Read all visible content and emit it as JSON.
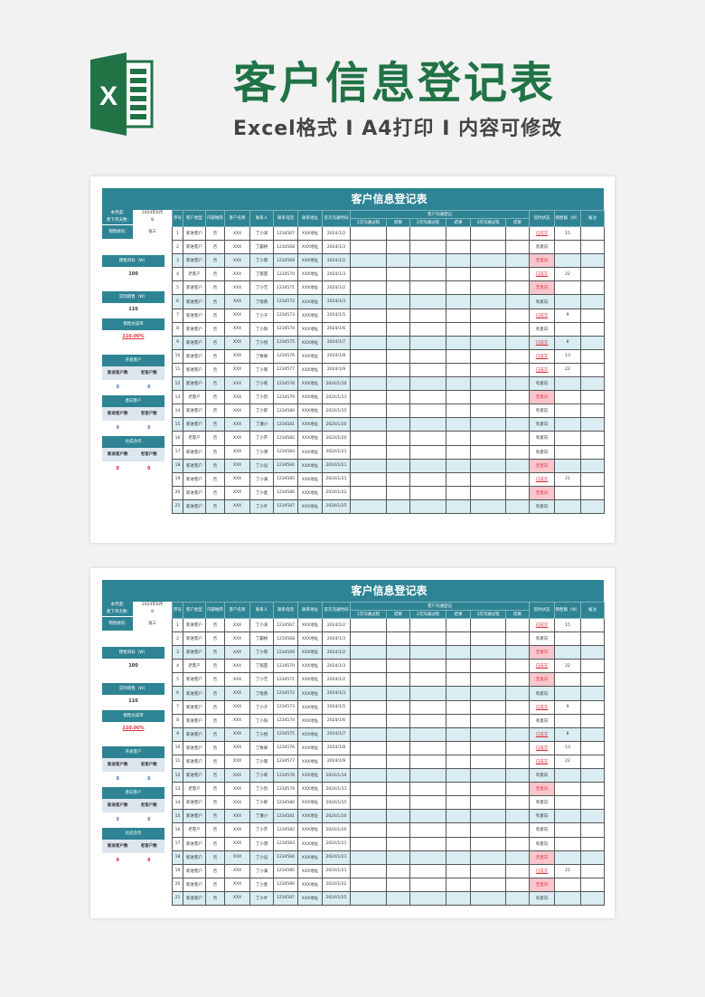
{
  "banner": {
    "title": "客户信息登记表",
    "subtitle": "Excel格式 I A4打印 I 内容可修改",
    "logo_letter": "X",
    "brand_color": "#217346"
  },
  "sheet": {
    "title": "客户信息登记表",
    "accent_color": "#2e8494",
    "info": {
      "month_label": "本月度:",
      "month_value": "2024年6月",
      "days_label": "距下月天数:",
      "days_value": "8",
      "advisor_label": "销售顾问:",
      "advisor_value": "张三"
    },
    "summary": {
      "target_label": "销售目标（W）",
      "target_value": "100",
      "actual_label": "实际销售（W）",
      "actual_value": "110",
      "rate_label": "销售达成率",
      "rate_value": "110.00%",
      "groups": [
        {
          "title": "开发客户",
          "new_label": "新进客户数",
          "old_label": "老客户数",
          "new_value": "8",
          "old_value": "8",
          "color": "#4a7fd0"
        },
        {
          "title": "意向客户",
          "new_label": "新进客户数",
          "old_label": "老客户数",
          "new_value": "8",
          "old_value": "8",
          "color": "#8a6cc0"
        },
        {
          "title": "达成合作",
          "new_label": "新进客户数",
          "old_label": "老客户数",
          "new_value": "8",
          "old_value": "8",
          "color": "#e0303a"
        }
      ]
    },
    "columns": [
      "序号",
      "客户类型",
      "内部推荐",
      "客户名称",
      "联系人",
      "联系电话",
      "联系地址",
      "首次沟通时间",
      "1次沟通过程",
      "结果",
      "2次沟通过程",
      "结果",
      "3次沟通过程",
      "结果",
      "签约状态",
      "销售额（W）",
      "备注"
    ],
    "group_header": "客户沟通登记",
    "rows": [
      [
        "1",
        "新进客户",
        "否",
        "XXX",
        "丁小泽",
        "1234567",
        "XXX地址",
        "2024/1/2",
        "已成交",
        "15"
      ],
      [
        "2",
        "新进客户",
        "否",
        "XXX",
        "丁霸格",
        "1234568",
        "XXX地址",
        "2024/1/3",
        "有意向",
        ""
      ],
      [
        "3",
        "新进客户",
        "否",
        "XXX",
        "丁小雨",
        "1234569",
        "XXX地址",
        "2024/1/2",
        "无意向",
        ""
      ],
      [
        "4",
        "老客户",
        "否",
        "XXX",
        "丁铭茜",
        "1234570",
        "XXX地址",
        "2024/1/3",
        "已成交",
        "22"
      ],
      [
        "5",
        "新进客户",
        "否",
        "XXX",
        "丁小艺",
        "1234571",
        "XXX地址",
        "2024/1/2",
        "无意向",
        ""
      ],
      [
        "6",
        "新进客户",
        "否",
        "XXX",
        "丁晓燕",
        "1234572",
        "XXX地址",
        "2024/1/3",
        "有意向",
        ""
      ],
      [
        "7",
        "新进客户",
        "否",
        "XXX",
        "丁小子",
        "1234573",
        "XXX地址",
        "2024/1/5",
        "已成交",
        "9"
      ],
      [
        "8",
        "新进客户",
        "否",
        "XXX",
        "丁小阳",
        "1234574",
        "XXX地址",
        "2024/1/6",
        "有意向",
        ""
      ],
      [
        "9",
        "新进客户",
        "否",
        "XXX",
        "丁小悦",
        "1234575",
        "XXX地址",
        "2024/1/7",
        "已成交",
        "8"
      ],
      [
        "10",
        "新进客户",
        "否",
        "XXX",
        "丁致果",
        "1234576",
        "XXX地址",
        "2024/1/8",
        "已成交",
        "13"
      ],
      [
        "11",
        "新进客户",
        "否",
        "XXX",
        "丁小南",
        "1234577",
        "XXX地址",
        "2024/1/9",
        "已成交",
        "22"
      ],
      [
        "12",
        "新进客户",
        "否",
        "XXX",
        "丁小莉",
        "1234578",
        "XXX地址",
        "2024/1/10",
        "有意向",
        ""
      ],
      [
        "13",
        "老客户",
        "否",
        "XXX",
        "丁小凯",
        "1234579",
        "XXX地址",
        "2024/1/11",
        "无意向",
        ""
      ],
      [
        "14",
        "新进客户",
        "否",
        "XXX",
        "丁小即",
        "1234580",
        "XXX地址",
        "2024/1/15",
        "有意向",
        ""
      ],
      [
        "15",
        "新进客户",
        "否",
        "XXX",
        "丁潘小",
        "1234581",
        "XXX地址",
        "2024/1/20",
        "有意向",
        ""
      ],
      [
        "16",
        "老客户",
        "否",
        "XXX",
        "丁小芹",
        "1234582",
        "XXX地址",
        "2024/1/20",
        "有意向",
        ""
      ],
      [
        "17",
        "新进客户",
        "否",
        "XXX",
        "丁小港",
        "1234583",
        "XXX地址",
        "2024/1/21",
        "有意向",
        ""
      ],
      [
        "18",
        "新进客户",
        "否",
        "XXX",
        "丁小设",
        "1234584",
        "XXX地址",
        "2024/1/21",
        "无意向",
        ""
      ],
      [
        "19",
        "新进客户",
        "否",
        "XXX",
        "丁小满",
        "1234585",
        "XXX地址",
        "2024/1/21",
        "已成交",
        "21"
      ],
      [
        "20",
        "新进客户",
        "否",
        "XXX",
        "丁小麦",
        "1234586",
        "XXX地址",
        "2024/1/22",
        "无意向",
        ""
      ],
      [
        "21",
        "新进客户",
        "否",
        "XXX",
        "丁小叶",
        "1234587",
        "XXX地址",
        "2024/1/25",
        "有意向",
        ""
      ]
    ]
  }
}
